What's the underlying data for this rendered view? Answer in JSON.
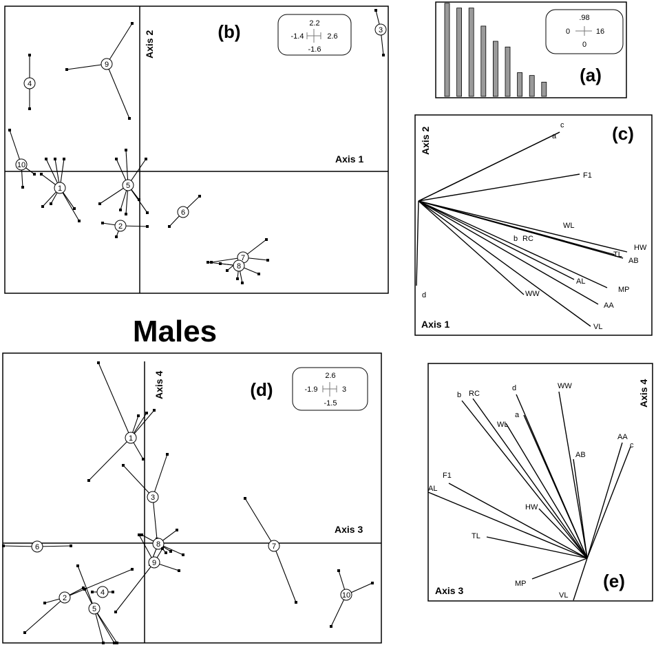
{
  "figure_title": "Males",
  "panels": {
    "a": {
      "letter": "(a)",
      "bars": [
        0.98,
        0.93,
        0.93,
        0.74,
        0.58,
        0.52,
        0.25,
        0.22,
        0.15
      ],
      "legend": {
        "top": ".98",
        "left": "0",
        "right": "16",
        "bottom": "0"
      }
    },
    "b": {
      "letter": "(b)",
      "axis_x": "Axis 1",
      "axis_y": "Axis 2",
      "scale": {
        "top": "2.2",
        "left": "-1.4",
        "right": "2.6",
        "bottom": "-1.6"
      },
      "group_labels": [
        "1",
        "2",
        "3",
        "4",
        "5",
        "6",
        "7",
        "8",
        "9",
        "10"
      ]
    },
    "c": {
      "letter": "(c)",
      "axis_x": "Axis 1",
      "axis_y": "Axis 2",
      "vector_labels": [
        "c",
        "a",
        "F1",
        "WL",
        "b",
        "RC",
        "HW",
        "TL",
        "AB",
        "AL",
        "MP",
        "WW",
        "AA",
        "VL",
        "d"
      ]
    },
    "d": {
      "letter": "(d)",
      "axis_x": "Axis 3",
      "axis_y": "Axis 4",
      "scale": {
        "top": "2.6",
        "left": "-1.9",
        "right": "3",
        "bottom": "-1.5"
      },
      "group_labels": [
        "1",
        "2",
        "3",
        "4",
        "5",
        "6",
        "7",
        "8",
        "9",
        "10"
      ]
    },
    "e": {
      "letter": "(e)",
      "axis_x": "Axis 3",
      "axis_y": "Axis 4",
      "vector_labels": [
        "b",
        "RC",
        "d",
        "WW",
        "a",
        "WL",
        "AB",
        "AA",
        "c",
        "F1",
        "AL",
        "HW",
        "TL",
        "MP",
        "VL"
      ]
    }
  }
}
